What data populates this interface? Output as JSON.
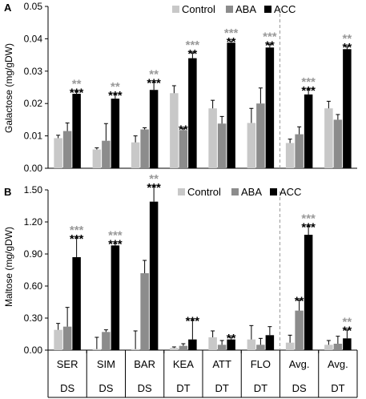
{
  "colors": {
    "control": "#c8c8c8",
    "aba": "#8c8c8c",
    "acc": "#000000",
    "star_gray": "#999999",
    "star_black": "#000000",
    "divider": "#9a9a9a"
  },
  "x_axis": {
    "categories": [
      "SER",
      "SIM",
      "BAR",
      "KEA",
      "ATT",
      "FLO",
      "Avg.",
      "Avg."
    ],
    "groups": [
      "DS",
      "DS",
      "DS",
      "DT",
      "DT",
      "DT",
      "DS",
      "DT"
    ]
  },
  "chart_data": [
    {
      "type": "bar",
      "panel_label": "A",
      "ylabel": "Galactose (mg/gDW)",
      "ylim": [
        0,
        0.05
      ],
      "yticks": [
        "0.00",
        "0.01",
        "0.02",
        "0.03",
        "0.04",
        "0.05"
      ],
      "yticks_values": [
        0,
        0.01,
        0.02,
        0.03,
        0.04,
        0.05
      ],
      "legend_position": "top-right",
      "series": [
        {
          "name": "Control",
          "values": [
            0.0093,
            0.0058,
            0.008,
            0.0232,
            0.0185,
            0.014,
            0.0078,
            0.0185
          ],
          "errors": [
            0.0009,
            0.0005,
            0.002,
            0.0023,
            0.0025,
            0.0045,
            0.0012,
            0.0022
          ]
        },
        {
          "name": "ABA",
          "values": [
            0.0115,
            0.0085,
            0.012,
            0.0118,
            0.0138,
            0.02,
            0.0105,
            0.015
          ],
          "errors": [
            0.0025,
            0.0053,
            0.0005,
            0.0005,
            0.0022,
            0.0048,
            0.0023,
            0.0016
          ]
        },
        {
          "name": "ACC",
          "values": [
            0.023,
            0.0215,
            0.0242,
            0.034,
            0.0388,
            0.0373,
            0.0228,
            0.0368
          ],
          "errors": [
            0.0007,
            0.0013,
            0.0024,
            0.0017,
            0.0005,
            0.001,
            0.0015,
            0.0008
          ]
        }
      ],
      "annotations": [
        {
          "category_index": 0,
          "series": "ACC",
          "lines": [
            {
              "text": "**",
              "color": "gray"
            },
            {
              "text": "***",
              "color": "black"
            }
          ]
        },
        {
          "category_index": 1,
          "series": "ACC",
          "lines": [
            {
              "text": "**",
              "color": "gray"
            },
            {
              "text": "***",
              "color": "black"
            }
          ]
        },
        {
          "category_index": 2,
          "series": "ACC",
          "lines": [
            {
              "text": "**",
              "color": "gray"
            },
            {
              "text": "***",
              "color": "black"
            }
          ]
        },
        {
          "category_index": 3,
          "series": "ABA",
          "lines": [
            {
              "text": "**",
              "color": "black"
            }
          ]
        },
        {
          "category_index": 3,
          "series": "ACC",
          "lines": [
            {
              "text": "***",
              "color": "gray"
            },
            {
              "text": "**",
              "color": "black"
            }
          ]
        },
        {
          "category_index": 4,
          "series": "ACC",
          "lines": [
            {
              "text": "***",
              "color": "gray"
            },
            {
              "text": "**",
              "color": "black"
            }
          ]
        },
        {
          "category_index": 5,
          "series": "ACC",
          "lines": [
            {
              "text": "***",
              "color": "gray"
            },
            {
              "text": "**",
              "color": "black"
            }
          ]
        },
        {
          "category_index": 6,
          "series": "ACC",
          "lines": [
            {
              "text": "***",
              "color": "gray"
            },
            {
              "text": "***",
              "color": "black"
            }
          ]
        },
        {
          "category_index": 7,
          "series": "ACC",
          "lines": [
            {
              "text": "**",
              "color": "gray"
            },
            {
              "text": "**",
              "color": "black"
            }
          ]
        }
      ]
    },
    {
      "type": "bar",
      "panel_label": "B",
      "ylabel": "Maltose (mg/gDW)",
      "ylim": [
        0,
        1.5
      ],
      "yticks": [
        "0.00",
        "0.30",
        "0.60",
        "0.90",
        "1.20",
        "1.50"
      ],
      "yticks_values": [
        0,
        0.3,
        0.6,
        0.9,
        1.2,
        1.5
      ],
      "legend_position": "top-right",
      "series": [
        {
          "name": "Control",
          "values": [
            0.19,
            0.01,
            0.01,
            0.02,
            0.12,
            0.1,
            0.07,
            0.05
          ],
          "errors": [
            0.06,
            0.11,
            0.17,
            0.01,
            0.06,
            0.13,
            0.07,
            0.04
          ]
        },
        {
          "name": "ABA",
          "values": [
            0.22,
            0.17,
            0.72,
            0.04,
            0.05,
            0.05,
            0.37,
            0.06
          ],
          "errors": [
            0.18,
            0.02,
            0.12,
            0.02,
            0.04,
            0.06,
            0.1,
            0.07
          ]
        },
        {
          "name": "ACC",
          "values": [
            0.87,
            0.98,
            1.39,
            0.1,
            0.1,
            0.14,
            1.08,
            0.11
          ],
          "errors": [
            0.18,
            0.02,
            0.14,
            0.18,
            0.02,
            0.08,
            0.08,
            0.08
          ]
        }
      ],
      "annotations": [
        {
          "category_index": 0,
          "series": "ACC",
          "lines": [
            {
              "text": "***",
              "color": "gray"
            },
            {
              "text": "***",
              "color": "black"
            }
          ]
        },
        {
          "category_index": 1,
          "series": "ACC",
          "lines": [
            {
              "text": "***",
              "color": "gray"
            },
            {
              "text": "***",
              "color": "black"
            }
          ]
        },
        {
          "category_index": 2,
          "series": "ACC",
          "lines": [
            {
              "text": "**",
              "color": "gray"
            },
            {
              "text": "***",
              "color": "black"
            }
          ]
        },
        {
          "category_index": 3,
          "series": "ACC",
          "lines": [
            {
              "text": "***",
              "color": "black"
            }
          ]
        },
        {
          "category_index": 4,
          "series": "ACC",
          "lines": [
            {
              "text": "**",
              "color": "black"
            }
          ]
        },
        {
          "category_index": 6,
          "series": "ABA",
          "lines": [
            {
              "text": "**",
              "color": "black"
            }
          ]
        },
        {
          "category_index": 6,
          "series": "ACC",
          "lines": [
            {
              "text": "***",
              "color": "gray"
            },
            {
              "text": "***",
              "color": "black"
            }
          ]
        },
        {
          "category_index": 7,
          "series": "ACC",
          "lines": [
            {
              "text": "**",
              "color": "gray"
            },
            {
              "text": "**",
              "color": "black"
            }
          ]
        }
      ]
    }
  ]
}
